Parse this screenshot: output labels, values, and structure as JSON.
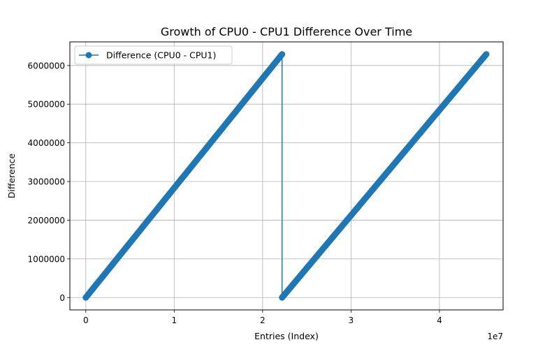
{
  "chart_data": {
    "type": "line",
    "title": "Growth of CPU0 - CPU1 Difference Over Time",
    "xlabel": "Entries (Index)",
    "ylabel": "Difference",
    "x_offset_label": "1e7",
    "xlim": [
      -1800000,
      47200000
    ],
    "ylim": [
      -320000,
      6610000
    ],
    "x_ticks": [
      0,
      10000000,
      20000000,
      30000000,
      40000000
    ],
    "x_tick_labels": [
      "0",
      "1",
      "2",
      "3",
      "4"
    ],
    "y_ticks": [
      0,
      1000000,
      2000000,
      3000000,
      4000000,
      5000000,
      6000000
    ],
    "y_tick_labels": [
      "0",
      "1000000",
      "2000000",
      "3000000",
      "4000000",
      "5000000",
      "6000000"
    ],
    "grid": true,
    "legend_position": "top-left",
    "series": [
      {
        "name": "Difference (CPU0 - CPU1)",
        "color": "#1f77b4",
        "marker": "circle",
        "x": [
          0,
          22200000,
          22200000,
          45300000
        ],
        "y": [
          0,
          6290000,
          0,
          6290000
        ]
      }
    ]
  }
}
